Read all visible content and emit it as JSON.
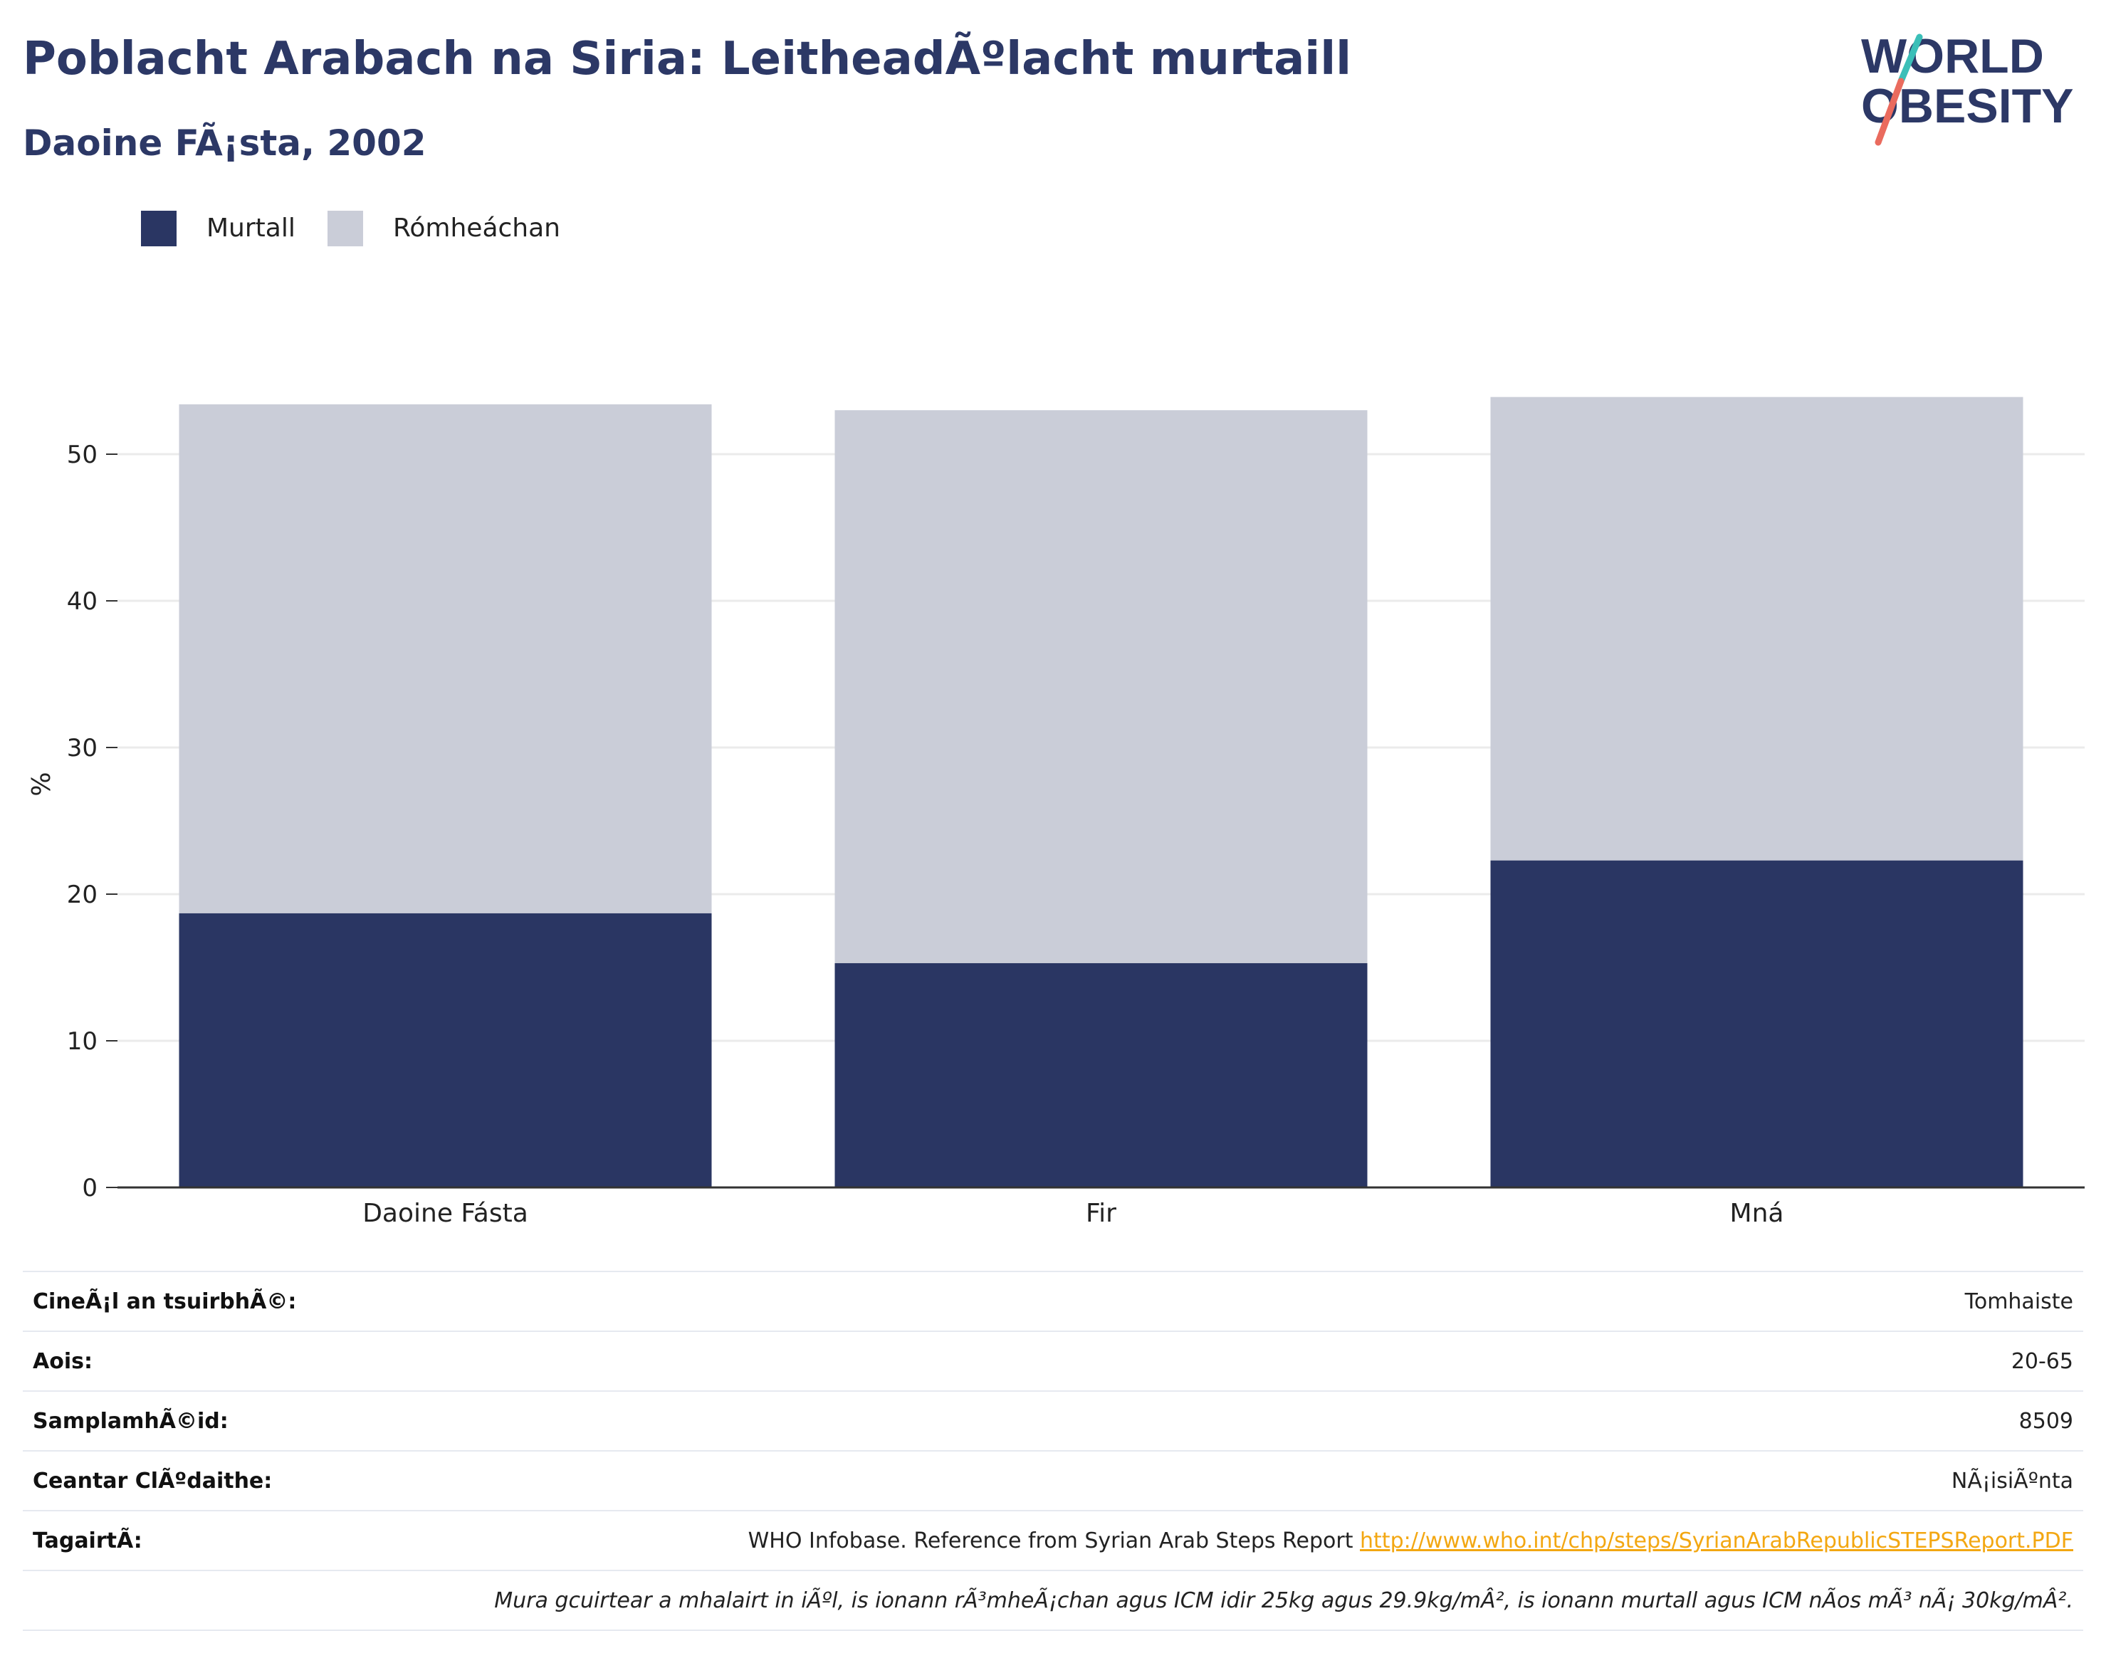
{
  "title": "Poblacht Arabach na Siria: LeitheadÃºlacht murtaill",
  "subtitle": "Daoine FÃ¡sta, 2002",
  "logo": {
    "line1": "WORLD",
    "line2": "OBESITY"
  },
  "legend": [
    {
      "label": "Murtall",
      "color": "#2a3663"
    },
    {
      "label": "Rómheáchan",
      "color": "#cacdd8"
    }
  ],
  "chart_data": {
    "type": "bar",
    "stacked": true,
    "categories": [
      "Daoine Fásta",
      "Fir",
      "Mná"
    ],
    "series": [
      {
        "name": "Murtall",
        "color": "#2a3663",
        "values": [
          18.7,
          15.3,
          22.3
        ]
      },
      {
        "name": "Rómheáchan",
        "color": "#cacdd8",
        "values": [
          34.7,
          37.7,
          31.6
        ]
      }
    ],
    "ylabel": "%",
    "ylim": [
      0,
      55
    ],
    "yticks": [
      0,
      10,
      20,
      30,
      40,
      50
    ],
    "grid": true
  },
  "info": [
    {
      "label": "CineÃ¡l an tsuirbhÃ©:",
      "value": "Tomhaiste"
    },
    {
      "label": "Aois:",
      "value": "20-65"
    },
    {
      "label": "SamplamhÃ©id:",
      "value": "8509"
    },
    {
      "label": "Ceantar ClÃºdaithe:",
      "value": "NÃ¡isiÃºnta"
    },
    {
      "label": "TagairtÃ:",
      "value": "WHO Infobase. Reference from Syrian Arab Steps Report",
      "link": "http://www.who.int/chp/steps/SyrianArabRepublicSTEPSReport.PDF"
    }
  ],
  "note": "Mura gcuirtear a mhalairt in iÃºl, is ionann rÃ³mheÃ¡chan agus ICM idir 25kg agus 29.9kg/mÂ², is ionann murtall agus ICM nÃos mÃ³ nÃ¡ 30kg/mÂ²."
}
